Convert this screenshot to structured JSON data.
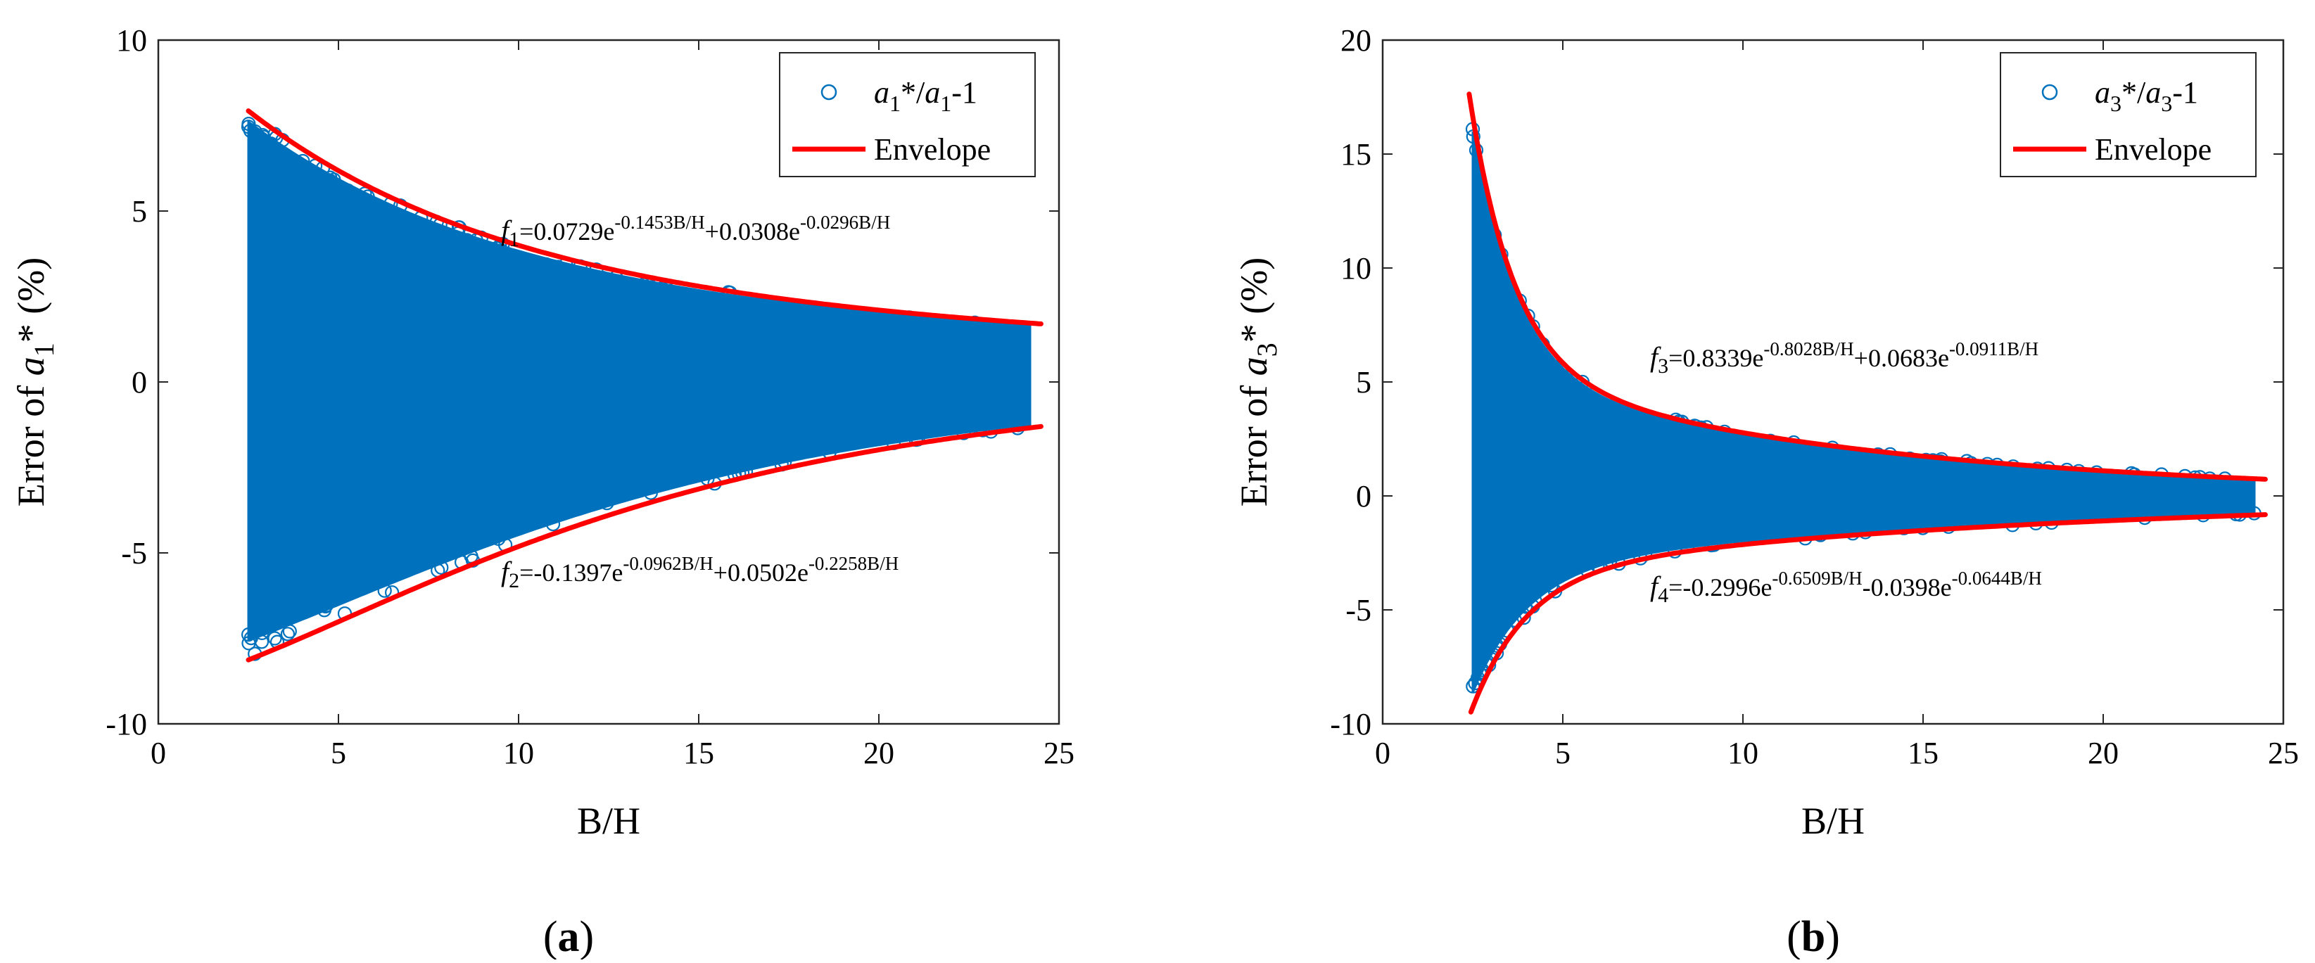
{
  "chart_data": [
    {
      "type": "scatter",
      "panel_label": {
        "open": "(",
        "letter": "a",
        "close": ")"
      },
      "xlabel": "B/H",
      "ylabel": {
        "prefix": "Error of ",
        "var": "a",
        "sub": "1",
        "star": "*",
        "suffix": " (%)"
      },
      "xlim": [
        0,
        25
      ],
      "ylim": [
        -10,
        10
      ],
      "xticks": [
        "0",
        "5",
        "10",
        "15",
        "20",
        "25"
      ],
      "yticks": [
        "-10",
        "-5",
        "0",
        "5",
        "10"
      ],
      "legend": {
        "position": "top-right",
        "scatter_label": {
          "v1": "a",
          "s1": "1",
          "mid": "*/",
          "v2": "a",
          "s2": "1",
          "tail": "-1"
        },
        "line_label": "Envelope"
      },
      "x_range_data": [
        2.5,
        24.2
      ],
      "scatter_color": "#0072BD",
      "envelope_color": "#FF0000",
      "upper_envelope": {
        "name": "f",
        "sub": "1",
        "text_parts": [
          "=0.0729e",
          "-0.1453B/H",
          "+0.0308e",
          "-0.0296B/H"
        ],
        "terms": [
          [
            7.29,
            -0.1453
          ],
          [
            3.08,
            -0.0296
          ]
        ],
        "x_range": [
          2.5,
          24.5
        ]
      },
      "lower_envelope": {
        "name": "f",
        "sub": "2",
        "text_parts": [
          "=-0.1397e",
          "-0.0962B/H",
          "+0.0502e",
          "-0.2258B/H"
        ],
        "terms": [
          [
            -13.97,
            -0.0962
          ],
          [
            5.02,
            -0.2258
          ]
        ],
        "x_range": [
          2.5,
          24.5
        ]
      }
    },
    {
      "type": "scatter",
      "panel_label": {
        "open": "(",
        "letter": "b",
        "close": ")"
      },
      "xlabel": "B/H",
      "ylabel": {
        "prefix": "Error of ",
        "var": "a",
        "sub": "3",
        "star": "*",
        "suffix": " (%)"
      },
      "xlim": [
        0,
        25
      ],
      "ylim": [
        -10,
        20
      ],
      "xticks": [
        "0",
        "5",
        "10",
        "15",
        "20",
        "25"
      ],
      "yticks": [
        "-10",
        "-5",
        "0",
        "5",
        "10",
        "15",
        "20"
      ],
      "legend": {
        "position": "top-right",
        "scatter_label": {
          "v1": "a",
          "s1": "3",
          "mid": "*/",
          "v2": "a",
          "s2": "3",
          "tail": "-1"
        },
        "line_label": "Envelope"
      },
      "x_range_data": [
        2.5,
        24.2
      ],
      "scatter_color": "#0072BD",
      "envelope_color": "#FF0000",
      "upper_envelope": {
        "name": "f",
        "sub": "3",
        "text_parts": [
          "=0.8339e",
          "-0.8028B/H",
          "+0.0683e",
          "-0.0911B/H"
        ],
        "terms": [
          [
            83.39,
            -0.8028
          ],
          [
            6.83,
            -0.0911
          ]
        ],
        "x_range": [
          2.4,
          24.5
        ]
      },
      "lower_envelope": {
        "name": "f",
        "sub": "4",
        "text_parts": [
          "=-0.2996e",
          "-0.6509B/H",
          "-0.0398e",
          "-0.0644B/H"
        ],
        "terms": [
          [
            -29.96,
            -0.6509
          ],
          [
            -3.98,
            -0.0644
          ]
        ],
        "x_range": [
          2.45,
          24.5
        ]
      }
    }
  ]
}
